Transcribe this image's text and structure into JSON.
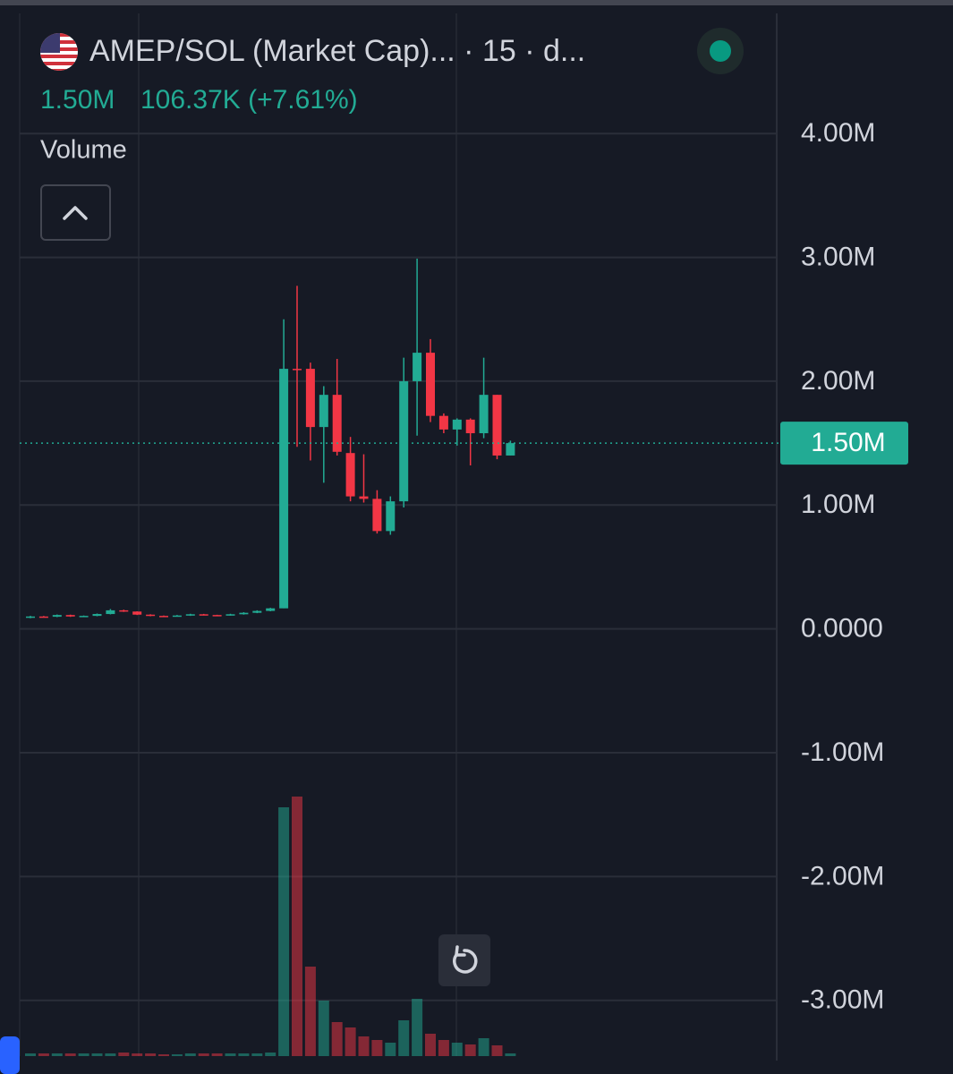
{
  "chart_data": {
    "type": "candlestick",
    "title": "AMEP/SOL (Market Cap)... · 15 · d...",
    "header_values": [
      "1.50M",
      "106.37K (+7.61%)"
    ],
    "pane_label": "Volume",
    "last_label": "1.50M",
    "up_color": "#22ab94",
    "down_color": "#f23645",
    "grid": true,
    "categories": [
      null,
      null,
      null,
      null,
      null,
      null,
      null,
      null,
      null,
      null,
      null,
      null,
      null,
      null,
      null,
      null,
      null,
      null,
      null,
      null,
      null,
      null,
      null,
      null,
      null,
      null,
      null,
      null,
      null,
      null,
      null,
      null,
      null,
      null,
      null,
      null,
      null
    ],
    "open": [
      90000,
      100000,
      98000,
      112000,
      100000,
      105000,
      120000,
      150000,
      140000,
      115000,
      105000,
      102000,
      108000,
      118000,
      112000,
      110000,
      118000,
      130000,
      145000,
      166000,
      2100000,
      2100000,
      1630000,
      1890000,
      1420000,
      1070000,
      1050000,
      790000,
      1030000,
      2000000,
      2230000,
      1720000,
      1610000,
      1690000,
      1580000,
      1890000,
      1400000
    ],
    "high": [
      105000,
      104000,
      116000,
      115000,
      108000,
      124000,
      160000,
      155000,
      142000,
      118000,
      108000,
      112000,
      122000,
      121000,
      114000,
      122000,
      135000,
      150000,
      170000,
      2500000,
      2770000,
      2150000,
      1960000,
      2180000,
      1550000,
      1410000,
      1120000,
      1070000,
      2190000,
      2990000,
      2340000,
      1740000,
      1700000,
      1700000,
      2190000,
      1890000,
      1520000
    ],
    "low": [
      86000,
      94000,
      95000,
      97000,
      96000,
      102000,
      117000,
      137000,
      112000,
      102000,
      99000,
      100000,
      105000,
      109000,
      107000,
      107000,
      115000,
      127000,
      142000,
      166000,
      1470000,
      1360000,
      1180000,
      1400000,
      1030000,
      1020000,
      770000,
      760000,
      980000,
      1560000,
      1670000,
      1580000,
      1480000,
      1320000,
      1540000,
      1370000,
      1400000
    ],
    "close": [
      100000,
      98000,
      112000,
      100000,
      105000,
      120000,
      150000,
      140000,
      115000,
      105000,
      102000,
      108000,
      118000,
      112000,
      110000,
      118000,
      130000,
      145000,
      166000,
      2100000,
      2090000,
      1630000,
      1890000,
      1430000,
      1070000,
      1050000,
      790000,
      1030000,
      2000000,
      2230000,
      1720000,
      1610000,
      1690000,
      1580000,
      1890000,
      1400000,
      1500000
    ],
    "volume": [
      3,
      3,
      3,
      3,
      3,
      3,
      3,
      4,
      3,
      3,
      2,
      2,
      3,
      3,
      3,
      3,
      3,
      3,
      4,
      278,
      290,
      100,
      62,
      38,
      32,
      22,
      18,
      15,
      40,
      64,
      25,
      18,
      15,
      13,
      20,
      12,
      3
    ],
    "ylim": [
      -3450000,
      4970000
    ],
    "yticks": [
      {
        "value": 4000000,
        "label": "4.00M"
      },
      {
        "value": 3000000,
        "label": "3.00M"
      },
      {
        "value": 2000000,
        "label": "2.00M"
      },
      {
        "value": 1000000,
        "label": "1.00M"
      },
      {
        "value": 0,
        "label": "0.0000"
      },
      {
        "value": -1000000,
        "label": "-1.00M"
      },
      {
        "value": -2000000,
        "label": "-2.00M"
      },
      {
        "value": -3000000,
        "label": "-3.00M"
      }
    ]
  }
}
